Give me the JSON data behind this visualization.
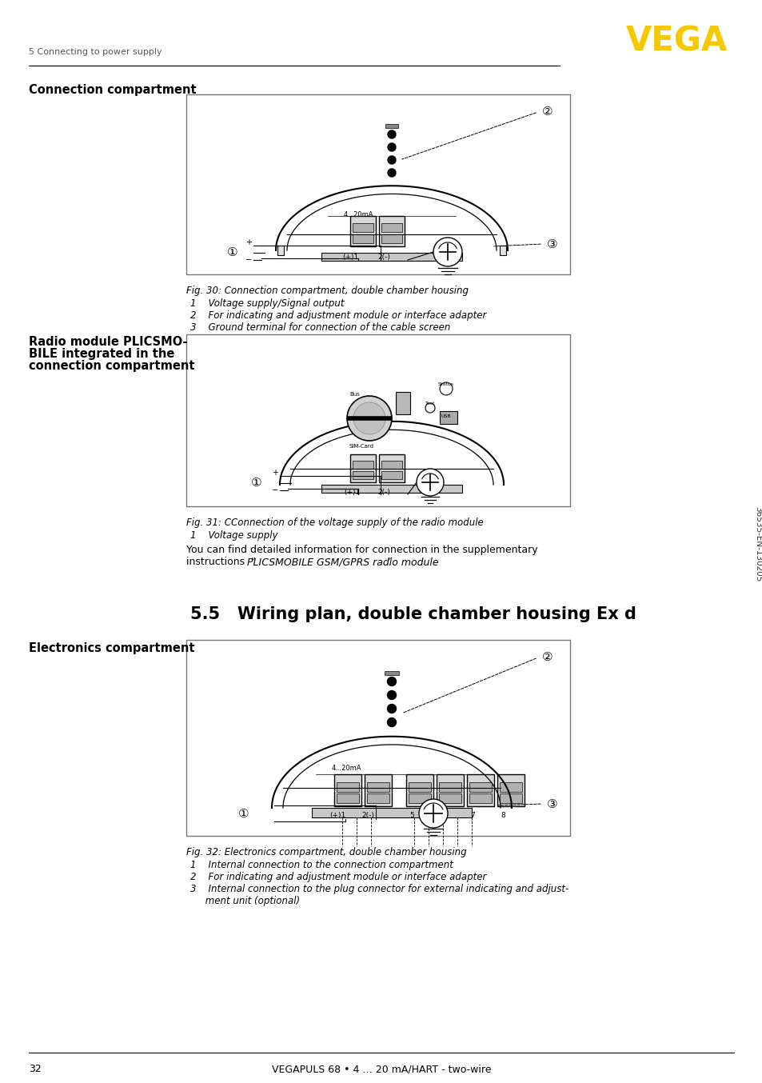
{
  "page_number": "32",
  "footer_text": "VEGAPULS 68 • 4 … 20 mA/HART - two-wire",
  "header_chapter": "5 Connecting to power supply",
  "vega_color": "#F5C800",
  "section1_title": "Connection compartment",
  "section2_title_lines": [
    "Radio module PLICSMO-",
    "BILE integrated in the",
    "connection compartment"
  ],
  "section3_title": "5.5   Wiring plan, double chamber housing Ex d",
  "section4_title": "Electronics compartment",
  "fig30_caption": "Fig. 30: Connection compartment, double chamber housing",
  "fig30_items": [
    "1    Voltage supply/Signal output",
    "2    For indicating and adjustment module or interface adapter",
    "3    Ground terminal for connection of the cable screen"
  ],
  "fig31_caption": "Fig. 31: CConnection of the voltage supply of the radio module",
  "fig31_items": [
    "1    Voltage supply"
  ],
  "fig31_text_lines": [
    "You can find detailed information for connection in the supplementary",
    "instructions  “PLICSMOBILE GSM/GPRS radio module”."
  ],
  "fig32_caption": "Fig. 32: Electronics compartment, double chamber housing",
  "fig32_items": [
    "1    Internal connection to the connection compartment",
    "2    For indicating and adjustment module or interface adapter",
    "3    Internal connection to the plug connector for external indicating and adjust-",
    "     ment unit (optional)"
  ],
  "sidebar_text": "36535-EN-130205",
  "bg_color": "#ffffff",
  "text_color": "#000000",
  "line_color": "#888888",
  "diagram_border": "#555555"
}
